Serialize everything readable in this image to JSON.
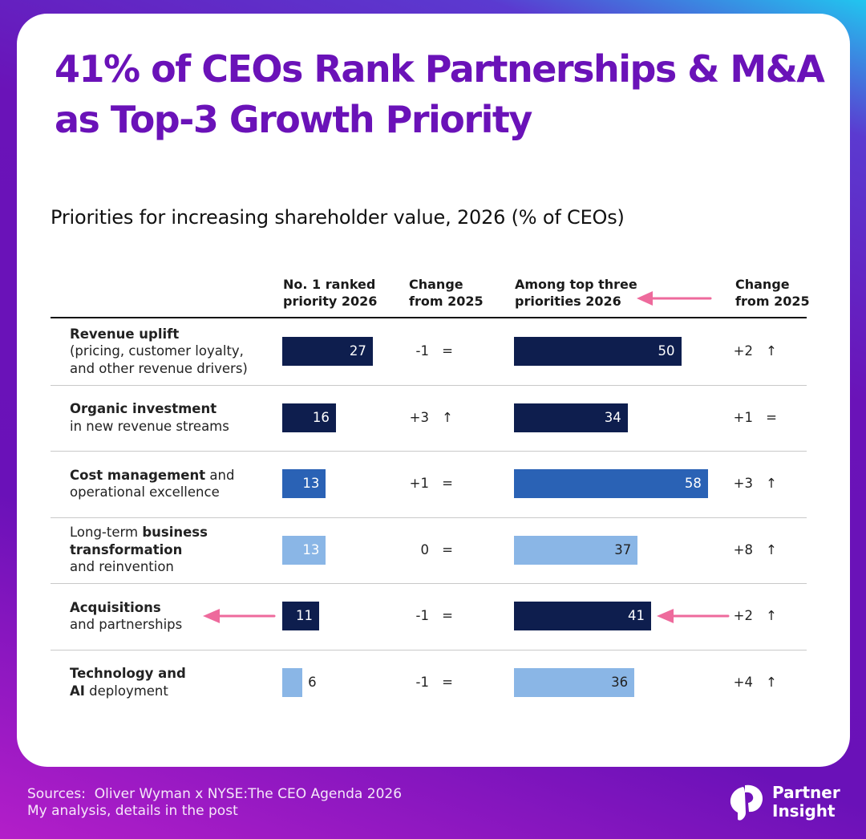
{
  "header": {
    "title_line1": "41% of CEOs Rank Partnerships & M&A",
    "title_line2": "as Top-3 Growth Priority"
  },
  "colors": {
    "title": "#6a12b8",
    "navy": "#0e1e4e",
    "blue": "#2a62b5",
    "light_blue": "#8ab6e6",
    "annotation_arrow": "#ee6a9c"
  },
  "chart_data": {
    "type": "table",
    "title": "Priorities for increasing shareholder value, 2026 (% of CEOs)",
    "columns": [
      "No. 1 ranked\npriority 2026",
      "Change\nfrom 2025",
      "Among top three\npriorities 2026",
      "Change\nfrom 2025"
    ],
    "rows": [
      {
        "label_parts": [
          {
            "text": "Revenue uplift",
            "bold": true,
            "newline_after": true
          },
          {
            "text": "(pricing, customer loyalty,",
            "bold": false,
            "newline_after": true
          },
          {
            "text": "and other revenue drivers)",
            "bold": false,
            "newline_after": false
          }
        ],
        "no1": 27,
        "no1_change": "-1",
        "no1_trend": "=",
        "top3": 50,
        "top3_change": "+2",
        "top3_trend": "↑",
        "shade": "navy"
      },
      {
        "label_parts": [
          {
            "text": "Organic investment",
            "bold": true,
            "newline_after": true
          },
          {
            "text": "in new revenue streams",
            "bold": false,
            "newline_after": false
          }
        ],
        "no1": 16,
        "no1_change": "+3",
        "no1_trend": "↑",
        "top3": 34,
        "top3_change": "+1",
        "top3_trend": "=",
        "shade": "navy"
      },
      {
        "label_parts": [
          {
            "text": "Cost management",
            "bold": true,
            "newline_after": false
          },
          {
            "text": " and",
            "bold": false,
            "newline_after": true
          },
          {
            "text": "operational excellence",
            "bold": false,
            "newline_after": false
          }
        ],
        "no1": 13,
        "no1_change": "+1",
        "no1_trend": "=",
        "top3": 58,
        "top3_change": "+3",
        "top3_trend": "↑",
        "shade": "blue"
      },
      {
        "label_parts": [
          {
            "text": "Long-term ",
            "bold": false,
            "newline_after": false
          },
          {
            "text": "business",
            "bold": true,
            "newline_after": true
          },
          {
            "text": "transformation",
            "bold": true,
            "newline_after": true
          },
          {
            "text": "and reinvention",
            "bold": false,
            "newline_after": false
          }
        ],
        "no1": 13,
        "no1_change": "0",
        "no1_trend": "=",
        "top3": 37,
        "top3_change": "+8",
        "top3_trend": "↑",
        "shade": "light_blue"
      },
      {
        "label_parts": [
          {
            "text": "Acquisitions",
            "bold": true,
            "newline_after": true
          },
          {
            "text": "and partnerships",
            "bold": false,
            "newline_after": false
          }
        ],
        "no1": 11,
        "no1_change": "-1",
        "no1_trend": "=",
        "top3": 41,
        "top3_change": "+2",
        "top3_trend": "↑",
        "shade": "navy",
        "highlighted": true
      },
      {
        "label_parts": [
          {
            "text": "Technology and",
            "bold": true,
            "newline_after": true
          },
          {
            "text": "AI",
            "bold": true,
            "newline_after": false
          },
          {
            "text": " deployment",
            "bold": false,
            "newline_after": false
          }
        ],
        "no1": 6,
        "no1_change": "-1",
        "no1_trend": "=",
        "top3": 36,
        "top3_change": "+4",
        "top3_trend": "↑",
        "shade": "light_blue"
      }
    ]
  },
  "footer": {
    "sources_line1": "Sources:  Oliver Wyman x NYSE:The CEO Agenda 2026",
    "sources_line2": "My analysis, details in the post",
    "brand_line1": "Partner",
    "brand_line2": "Insight",
    "brand_icon": "partner-insight-logo"
  }
}
